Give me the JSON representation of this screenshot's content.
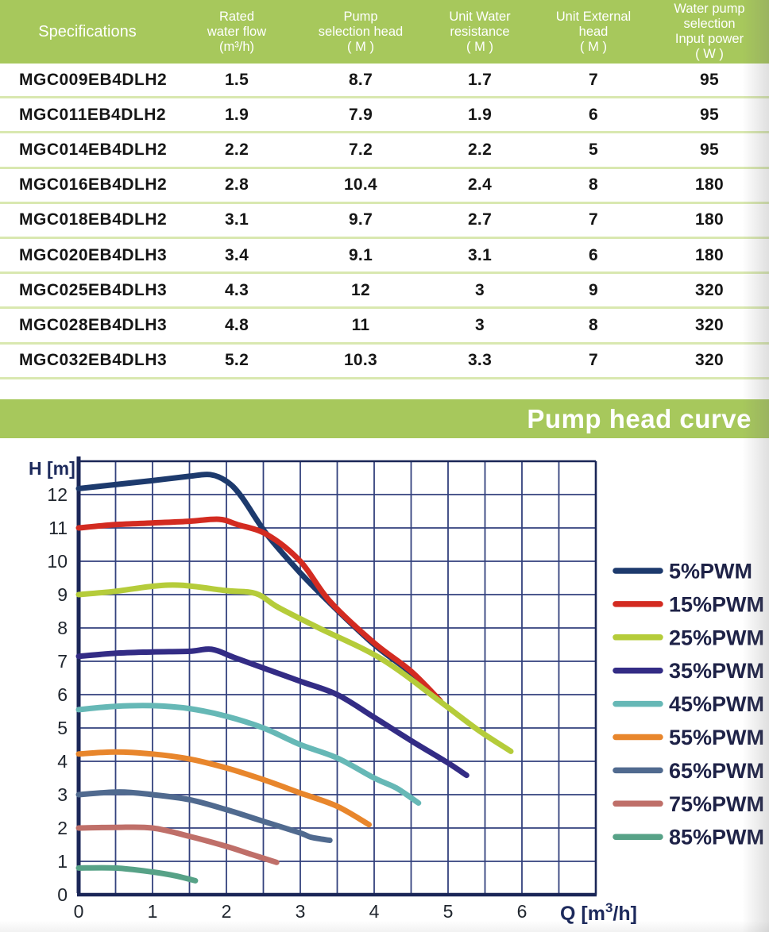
{
  "table": {
    "columns": [
      {
        "label_lines": [
          "Specifications"
        ]
      },
      {
        "label_lines": [
          "Rated",
          "water flow",
          "(m³/h)"
        ]
      },
      {
        "label_lines": [
          "Pump",
          "selection head",
          "( M )"
        ]
      },
      {
        "label_lines": [
          "Unit Water",
          "resistance",
          "( M )"
        ]
      },
      {
        "label_lines": [
          "Unit External",
          "head",
          "( M )"
        ]
      },
      {
        "label_lines": [
          "Water pump",
          "selection",
          "Input power",
          "( W )"
        ]
      }
    ],
    "rows": [
      [
        "MGC009EB4DLH2",
        "1.5",
        "8.7",
        "1.7",
        "7",
        "95"
      ],
      [
        "MGC011EB4DLH2",
        "1.9",
        "7.9",
        "1.9",
        "6",
        "95"
      ],
      [
        "MGC014EB4DLH2",
        "2.2",
        "7.2",
        "2.2",
        "5",
        "95"
      ],
      [
        "MGC016EB4DLH2",
        "2.8",
        "10.4",
        "2.4",
        "8",
        "180"
      ],
      [
        "MGC018EB4DLH2",
        "3.1",
        "9.7",
        "2.7",
        "7",
        "180"
      ],
      [
        "MGC020EB4DLH3",
        "3.4",
        "9.1",
        "3.1",
        "6",
        "180"
      ],
      [
        "MGC025EB4DLH3",
        "4.3",
        "12",
        "3",
        "9",
        "320"
      ],
      [
        "MGC028EB4DLH3",
        "4.8",
        "11",
        "3",
        "8",
        "320"
      ],
      [
        "MGC032EB4DLH3",
        "5.2",
        "10.3",
        "3.3",
        "7",
        "320"
      ]
    ],
    "header_bg": "#a7c85c",
    "separator_color": "#d9e8b0"
  },
  "banner": {
    "title": "Pump head curve",
    "color": "#a7c85c"
  },
  "chart_data": {
    "type": "line",
    "title": "Pump head curve",
    "xlabel": "Q [m³/h]",
    "ylabel": "H [m]",
    "xlim": [
      0,
      7
    ],
    "ylim": [
      0,
      13
    ],
    "x_ticks": [
      "0",
      "1",
      "2",
      "3",
      "4",
      "5",
      "6"
    ],
    "y_ticks": [
      "0",
      "1",
      "2",
      "3",
      "4",
      "5",
      "6",
      "7",
      "8",
      "9",
      "10",
      "11",
      "12"
    ],
    "grid": {
      "x_step": 0.5,
      "y_step": 1,
      "on": true
    },
    "legend_position": "right",
    "grid_color": "#33417d",
    "frame_color": "#1a2657",
    "tick_color": "#20262e",
    "axis_label_color": "#1d2a5c",
    "legend_text_color": "#1e2247",
    "series": [
      {
        "name": "5%PWM",
        "color": "#1d3a6d",
        "points": [
          [
            0,
            12.18
          ],
          [
            0.5,
            12.3
          ],
          [
            1,
            12.42
          ],
          [
            1.5,
            12.55
          ],
          [
            1.78,
            12.6
          ],
          [
            2.0,
            12.4
          ],
          [
            2.2,
            11.95
          ],
          [
            2.55,
            10.8
          ],
          [
            3.0,
            9.65
          ],
          [
            3.4,
            8.75
          ],
          [
            4,
            7.5
          ],
          [
            4.5,
            6.65
          ],
          [
            4.88,
            5.85
          ]
        ]
      },
      {
        "name": "15%PWM",
        "color": "#d32b21",
        "points": [
          [
            0,
            11.0
          ],
          [
            0.5,
            11.1
          ],
          [
            1,
            11.15
          ],
          [
            1.5,
            11.2
          ],
          [
            1.9,
            11.26
          ],
          [
            2.15,
            11.1
          ],
          [
            2.55,
            10.8
          ],
          [
            3.0,
            10.0
          ],
          [
            3.4,
            8.8
          ],
          [
            4,
            7.55
          ],
          [
            4.5,
            6.7
          ],
          [
            4.9,
            5.8
          ]
        ]
      },
      {
        "name": "25%PWM",
        "color": "#b5cc3a",
        "points": [
          [
            0,
            9.0
          ],
          [
            0.5,
            9.1
          ],
          [
            1,
            9.25
          ],
          [
            1.4,
            9.28
          ],
          [
            2,
            9.12
          ],
          [
            2.4,
            9.03
          ],
          [
            2.7,
            8.62
          ],
          [
            3.25,
            8.0
          ],
          [
            4.1,
            7.07
          ],
          [
            4.9,
            5.78
          ],
          [
            5.4,
            4.95
          ],
          [
            5.85,
            4.3
          ]
        ]
      },
      {
        "name": "35%PWM",
        "color": "#332c85",
        "points": [
          [
            0,
            7.15
          ],
          [
            0.5,
            7.24
          ],
          [
            1,
            7.28
          ],
          [
            1.5,
            7.3
          ],
          [
            1.8,
            7.36
          ],
          [
            2.1,
            7.12
          ],
          [
            2.5,
            6.8
          ],
          [
            3,
            6.4
          ],
          [
            3.5,
            6.0
          ],
          [
            4,
            5.32
          ],
          [
            4.5,
            4.62
          ],
          [
            5,
            3.95
          ],
          [
            5.25,
            3.58
          ]
        ]
      },
      {
        "name": "45%PWM",
        "color": "#66b8b6",
        "points": [
          [
            0,
            5.55
          ],
          [
            0.5,
            5.65
          ],
          [
            1,
            5.67
          ],
          [
            1.5,
            5.58
          ],
          [
            2,
            5.35
          ],
          [
            2.5,
            5.0
          ],
          [
            3,
            4.5
          ],
          [
            3.5,
            4.1
          ],
          [
            4,
            3.5
          ],
          [
            4.3,
            3.2
          ],
          [
            4.6,
            2.75
          ]
        ]
      },
      {
        "name": "55%PWM",
        "color": "#e8862c",
        "points": [
          [
            0,
            4.22
          ],
          [
            0.5,
            4.28
          ],
          [
            1,
            4.22
          ],
          [
            1.5,
            4.07
          ],
          [
            2,
            3.8
          ],
          [
            2.5,
            3.45
          ],
          [
            3,
            3.05
          ],
          [
            3.5,
            2.65
          ],
          [
            3.93,
            2.1
          ]
        ]
      },
      {
        "name": "65%PWM",
        "color": "#506a8f",
        "points": [
          [
            0,
            3.0
          ],
          [
            0.55,
            3.08
          ],
          [
            1,
            3.0
          ],
          [
            1.5,
            2.85
          ],
          [
            2,
            2.55
          ],
          [
            2.5,
            2.2
          ],
          [
            3,
            1.85
          ],
          [
            3.15,
            1.72
          ],
          [
            3.4,
            1.63
          ]
        ]
      },
      {
        "name": "75%PWM",
        "color": "#bf6f69",
        "points": [
          [
            0,
            2.0
          ],
          [
            0.5,
            2.02
          ],
          [
            1,
            2.0
          ],
          [
            1.5,
            1.75
          ],
          [
            2,
            1.45
          ],
          [
            2.35,
            1.2
          ],
          [
            2.68,
            0.97
          ]
        ]
      },
      {
        "name": "85%PWM",
        "color": "#57a287",
        "points": [
          [
            0,
            0.8
          ],
          [
            0.5,
            0.8
          ],
          [
            1,
            0.68
          ],
          [
            1.3,
            0.57
          ],
          [
            1.58,
            0.42
          ]
        ]
      }
    ]
  }
}
